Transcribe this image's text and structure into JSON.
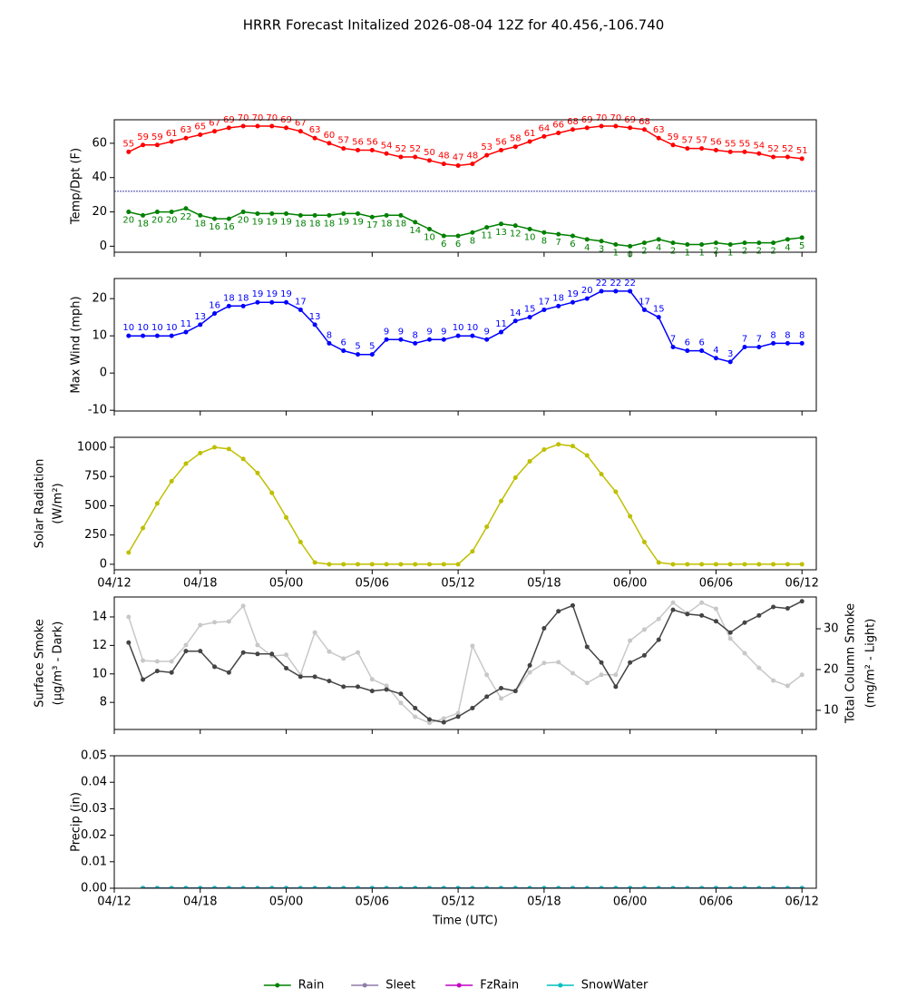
{
  "title": "HRRR Forecast Initalized 2026-08-04 12Z for 40.456,-106.740",
  "chart_data": [
    {
      "type": "line",
      "x": [
        "04/13",
        "04/14",
        "04/15",
        "04/16",
        "04/17",
        "04/18",
        "04/19",
        "04/20",
        "04/21",
        "04/22",
        "04/23",
        "05/00",
        "05/01",
        "05/02",
        "05/03",
        "05/04",
        "05/05",
        "05/06",
        "05/07",
        "05/08",
        "05/09",
        "05/10",
        "05/11",
        "05/12",
        "05/13",
        "05/14",
        "05/15",
        "05/16",
        "05/17",
        "05/18",
        "05/19",
        "05/20",
        "05/21",
        "05/22",
        "05/23",
        "06/00",
        "06/01",
        "06/02",
        "06/03",
        "06/04",
        "06/05",
        "06/06",
        "06/07",
        "06/08",
        "06/09",
        "06/10",
        "06/11",
        "06/12"
      ],
      "xlim": [
        "04/12",
        "06/13"
      ],
      "xticks": [
        "04/12",
        "04/18",
        "05/00",
        "05/06",
        "05/12",
        "05/18",
        "06/00",
        "06/06",
        "06/12"
      ],
      "xticklabels": false,
      "ylabel": [
        "Temp/Dpt (F)"
      ],
      "ylim": [
        -3.5,
        73.7
      ],
      "yticks": [
        0,
        20,
        40,
        60
      ],
      "reference_line": 32,
      "reference_color": "#00008b",
      "series": [
        {
          "color": "#ff0000",
          "labels": "above",
          "values": [
            55,
            59,
            59,
            61,
            63,
            65,
            67,
            69,
            70,
            70,
            70,
            69,
            67,
            63,
            60,
            57,
            56,
            56,
            54,
            52,
            52,
            50,
            48,
            47,
            48,
            53,
            56,
            58,
            61,
            64,
            66,
            68,
            69,
            70,
            70,
            69,
            68,
            63,
            59,
            57,
            57,
            56,
            55,
            55,
            54,
            52,
            52,
            51
          ]
        },
        {
          "color": "#008000",
          "labels": "below",
          "values": [
            20,
            18,
            20,
            20,
            22,
            18,
            16,
            16,
            20,
            19,
            19,
            19,
            18,
            18,
            18,
            19,
            19,
            17,
            18,
            18,
            14,
            10,
            6,
            6,
            8,
            11,
            13,
            12,
            10,
            8,
            7,
            6,
            4,
            3,
            1,
            0,
            2,
            4,
            2,
            1,
            1,
            2,
            1,
            2,
            2,
            2,
            4,
            5
          ]
        }
      ]
    },
    {
      "type": "line",
      "x": [
        "04/13",
        "04/14",
        "04/15",
        "04/16",
        "04/17",
        "04/18",
        "04/19",
        "04/20",
        "04/21",
        "04/22",
        "04/23",
        "05/00",
        "05/01",
        "05/02",
        "05/03",
        "05/04",
        "05/05",
        "05/06",
        "05/07",
        "05/08",
        "05/09",
        "05/10",
        "05/11",
        "05/12",
        "05/13",
        "05/14",
        "05/15",
        "05/16",
        "05/17",
        "05/18",
        "05/19",
        "05/20",
        "05/21",
        "05/22",
        "05/23",
        "06/00",
        "06/01",
        "06/02",
        "06/03",
        "06/04",
        "06/05",
        "06/06",
        "06/07",
        "06/08",
        "06/09",
        "06/10",
        "06/11",
        "06/12"
      ],
      "xlim": [
        "04/12",
        "06/13"
      ],
      "xticks": [
        "04/12",
        "04/18",
        "05/00",
        "05/06",
        "05/12",
        "05/18",
        "06/00",
        "06/06",
        "06/12"
      ],
      "xticklabels": false,
      "ylabel": [
        "Max Wind (mph)"
      ],
      "ylim": [
        -10.2,
        25.4
      ],
      "yticks": [
        -10,
        0,
        10,
        20
      ],
      "series": [
        {
          "color": "#0000ff",
          "labels": "above",
          "values": [
            10,
            10,
            10,
            10,
            11,
            13,
            16,
            18,
            18,
            19,
            19,
            19,
            17,
            13,
            8,
            6,
            5,
            5,
            9,
            9,
            8,
            9,
            9,
            10,
            10,
            9,
            11,
            14,
            15,
            17,
            18,
            19,
            20,
            22,
            22,
            22,
            17,
            15,
            7,
            6,
            6,
            4,
            3,
            7,
            7,
            8,
            8,
            8
          ]
        }
      ]
    },
    {
      "type": "line",
      "x": [
        "04/13",
        "04/14",
        "04/15",
        "04/16",
        "04/17",
        "04/18",
        "04/19",
        "04/20",
        "04/21",
        "04/22",
        "04/23",
        "05/00",
        "05/01",
        "05/02",
        "05/03",
        "05/04",
        "05/05",
        "05/06",
        "05/07",
        "05/08",
        "05/09",
        "05/10",
        "05/11",
        "05/12",
        "05/13",
        "05/14",
        "05/15",
        "05/16",
        "05/17",
        "05/18",
        "05/19",
        "05/20",
        "05/21",
        "05/22",
        "05/23",
        "06/00",
        "06/01",
        "06/02",
        "06/03",
        "06/04",
        "06/05",
        "06/06",
        "06/07",
        "06/08",
        "06/09",
        "06/10",
        "06/11",
        "06/12"
      ],
      "xlim": [
        "04/12",
        "06/13"
      ],
      "xticks": [
        "04/12",
        "04/18",
        "05/00",
        "05/06",
        "05/12",
        "05/18",
        "06/00",
        "06/06",
        "06/12"
      ],
      "xticklabels": true,
      "ylabel": [
        "Solar Radiation",
        "(W/m²)"
      ],
      "ylim": [
        -47,
        1085
      ],
      "yticks": [
        0,
        250,
        500,
        750,
        1000
      ],
      "series": [
        {
          "color": "#bfbf00",
          "values": [
            100,
            310,
            520,
            710,
            860,
            950,
            1000,
            985,
            900,
            780,
            610,
            400,
            190,
            15,
            0,
            0,
            0,
            0,
            0,
            0,
            0,
            0,
            0,
            0,
            110,
            320,
            540,
            740,
            880,
            980,
            1025,
            1010,
            930,
            770,
            620,
            410,
            190,
            15,
            0,
            0,
            0,
            0,
            0,
            0,
            0,
            0,
            0,
            0
          ]
        }
      ]
    },
    {
      "type": "line",
      "x": [
        "04/13",
        "04/14",
        "04/15",
        "04/16",
        "04/17",
        "04/18",
        "04/19",
        "04/20",
        "04/21",
        "04/22",
        "04/23",
        "05/00",
        "05/01",
        "05/02",
        "05/03",
        "05/04",
        "05/05",
        "05/06",
        "05/07",
        "05/08",
        "05/09",
        "05/10",
        "05/11",
        "05/12",
        "05/13",
        "05/14",
        "05/15",
        "05/16",
        "05/17",
        "05/18",
        "05/19",
        "05/20",
        "05/21",
        "05/22",
        "05/23",
        "06/00",
        "06/01",
        "06/02",
        "06/03",
        "06/04",
        "06/05",
        "06/06",
        "06/07",
        "06/08",
        "06/09",
        "06/10",
        "06/11",
        "06/12"
      ],
      "xlim": [
        "04/12",
        "06/13"
      ],
      "xticks": [
        "04/12",
        "04/18",
        "05/00",
        "05/06",
        "05/12",
        "05/18",
        "06/00",
        "06/06",
        "06/12"
      ],
      "xticklabels": false,
      "ylabel": [
        "Surface Smoke",
        "(µg/m³ - Dark)"
      ],
      "ylim": [
        6.1,
        15.4
      ],
      "yticks": [
        8,
        10,
        12,
        14
      ],
      "y2label": [
        "Total Column Smoke",
        "(mg/m² - Light)"
      ],
      "y2lim": [
        5.3,
        37.8
      ],
      "y2ticks": [
        10,
        20,
        30
      ],
      "series": [
        {
          "color": "#c8c8c8",
          "axis": "y2",
          "values": [
            32.9,
            22.2,
            22,
            22,
            26,
            30.9,
            31.6,
            31.8,
            35.6,
            26,
            23.3,
            23.6,
            18.7,
            29.1,
            24.4,
            22.7,
            24.2,
            17.6,
            16,
            11.8,
            8.4,
            6.9,
            8,
            9.3,
            25.8,
            18.7,
            12.9,
            14.7,
            19.3,
            21.6,
            21.8,
            19.1,
            16.7,
            18.7,
            18.7,
            27.1,
            29.8,
            32.4,
            36.4,
            33.8,
            36.4,
            34.9,
            27.6,
            24,
            20.4,
            17.3,
            16,
            18.7
          ]
        },
        {
          "color": "#444444",
          "values": [
            12.2,
            9.6,
            10.2,
            10.1,
            11.6,
            11.6,
            10.5,
            10.1,
            11.5,
            11.4,
            11.4,
            10.4,
            9.8,
            9.8,
            9.5,
            9.1,
            9.1,
            8.8,
            8.9,
            8.6,
            7.6,
            6.8,
            6.6,
            7.0,
            7.6,
            8.4,
            9.0,
            8.8,
            10.6,
            13.2,
            14.4,
            14.8,
            11.9,
            10.8,
            9.1,
            10.8,
            11.3,
            12.4,
            14.5,
            14.2,
            14.1,
            13.7,
            12.9,
            13.6,
            14.1,
            14.7,
            14.6,
            15.1
          ]
        }
      ]
    },
    {
      "type": "line",
      "x": [
        "04/14",
        "04/15",
        "04/16",
        "04/17",
        "04/18",
        "04/19",
        "04/20",
        "04/21",
        "04/22",
        "04/23",
        "05/00",
        "05/01",
        "05/02",
        "05/03",
        "05/04",
        "05/05",
        "05/06",
        "05/07",
        "05/08",
        "05/09",
        "05/10",
        "05/11",
        "05/12",
        "05/13",
        "05/14",
        "05/15",
        "05/16",
        "05/17",
        "05/18",
        "05/19",
        "05/20",
        "05/21",
        "05/22",
        "05/23",
        "06/00",
        "06/01",
        "06/02",
        "06/03",
        "06/04",
        "06/05",
        "06/06",
        "06/07",
        "06/08",
        "06/09",
        "06/10",
        "06/11",
        "06/12"
      ],
      "xlim": [
        "04/12",
        "06/13"
      ],
      "xticks": [
        "04/12",
        "04/18",
        "05/00",
        "05/06",
        "05/12",
        "05/18",
        "06/00",
        "06/06",
        "06/12"
      ],
      "xticklabels": true,
      "xlabel": "Time (UTC)",
      "ylabel": [
        "Precip (in)"
      ],
      "ylim": [
        0,
        0.05
      ],
      "yticks": [
        {
          "value": 0,
          "label": "0.00"
        },
        {
          "value": 0.01,
          "label": "0.01"
        },
        {
          "value": 0.02,
          "label": "0.02"
        },
        {
          "value": 0.03,
          "label": "0.03"
        },
        {
          "value": 0.04,
          "label": "0.04"
        },
        {
          "value": 0.05,
          "label": "0.05"
        }
      ],
      "legend": "lower center",
      "series": [
        {
          "name": "Rain",
          "color": "#008000",
          "values": [
            0,
            0,
            0,
            0,
            0,
            0,
            0,
            0,
            0,
            0,
            0,
            0,
            0,
            0,
            0,
            0,
            0,
            0,
            0,
            0,
            0,
            0,
            0,
            0,
            0,
            0,
            0,
            0,
            0,
            0,
            0,
            0,
            0,
            0,
            0,
            0,
            0,
            0,
            0,
            0,
            0,
            0,
            0,
            0,
            0,
            0,
            0
          ]
        },
        {
          "name": "Sleet",
          "color": "#8e7ca8",
          "values": [
            0,
            0,
            0,
            0,
            0,
            0,
            0,
            0,
            0,
            0,
            0,
            0,
            0,
            0,
            0,
            0,
            0,
            0,
            0,
            0,
            0,
            0,
            0,
            0,
            0,
            0,
            0,
            0,
            0,
            0,
            0,
            0,
            0,
            0,
            0,
            0,
            0,
            0,
            0,
            0,
            0,
            0,
            0,
            0,
            0,
            0,
            0
          ]
        },
        {
          "name": "FzRain",
          "color": "#c000c0",
          "values": [
            0,
            0,
            0,
            0,
            0,
            0,
            0,
            0,
            0,
            0,
            0,
            0,
            0,
            0,
            0,
            0,
            0,
            0,
            0,
            0,
            0,
            0,
            0,
            0,
            0,
            0,
            0,
            0,
            0,
            0,
            0,
            0,
            0,
            0,
            0,
            0,
            0,
            0,
            0,
            0,
            0,
            0,
            0,
            0,
            0,
            0,
            0
          ]
        },
        {
          "name": "SnowWater",
          "color": "#00bfbf",
          "values": [
            0,
            0,
            0,
            0,
            0,
            0,
            0,
            0,
            0,
            0,
            0,
            0,
            0,
            0,
            0,
            0,
            0,
            0,
            0,
            0,
            0,
            0,
            0,
            0,
            0,
            0,
            0,
            0,
            0,
            0,
            0,
            0,
            0,
            0,
            0,
            0,
            0,
            0,
            0,
            0,
            0,
            0,
            0,
            0,
            0,
            0,
            0
          ]
        }
      ]
    }
  ]
}
